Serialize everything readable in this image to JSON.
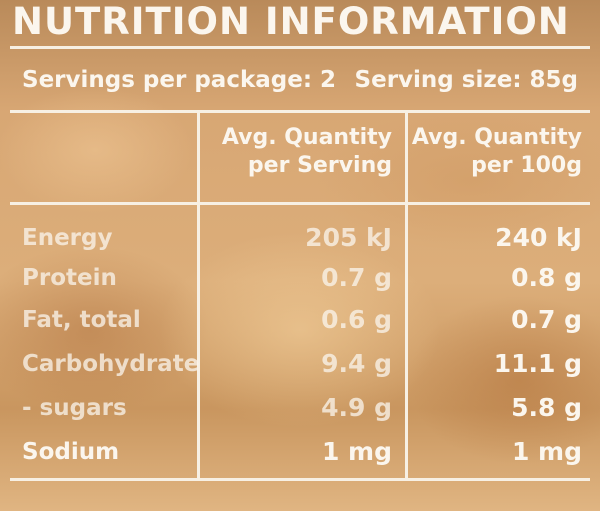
{
  "title": "NUTRITION INFORMATION",
  "servings_per_package": "Servings per package: 2",
  "serving_size": "Serving size: 85g",
  "headers": {
    "per_serving_line1": "Avg. Quantity",
    "per_serving_line2": "per Serving",
    "per_100g_line1": "Avg. Quantity",
    "per_100g_line2": "per 100g"
  },
  "rows": [
    {
      "name": "Energy",
      "per_serving": "205 kJ",
      "per_100g": "240 kJ"
    },
    {
      "name": "Protein",
      "per_serving": "0.7 g",
      "per_100g": "0.8 g"
    },
    {
      "name": "Fat, total",
      "per_serving": "0.6 g",
      "per_100g": "0.7 g"
    },
    {
      "name": "Carbohydrate",
      "per_serving": "9.4 g",
      "per_100g": "11.1 g"
    },
    {
      "name": "- sugars",
      "per_serving": "4.9 g",
      "per_100g": "5.8 g"
    },
    {
      "name": "Sodium",
      "per_serving": "1 mg",
      "per_100g": "1 mg"
    }
  ]
}
